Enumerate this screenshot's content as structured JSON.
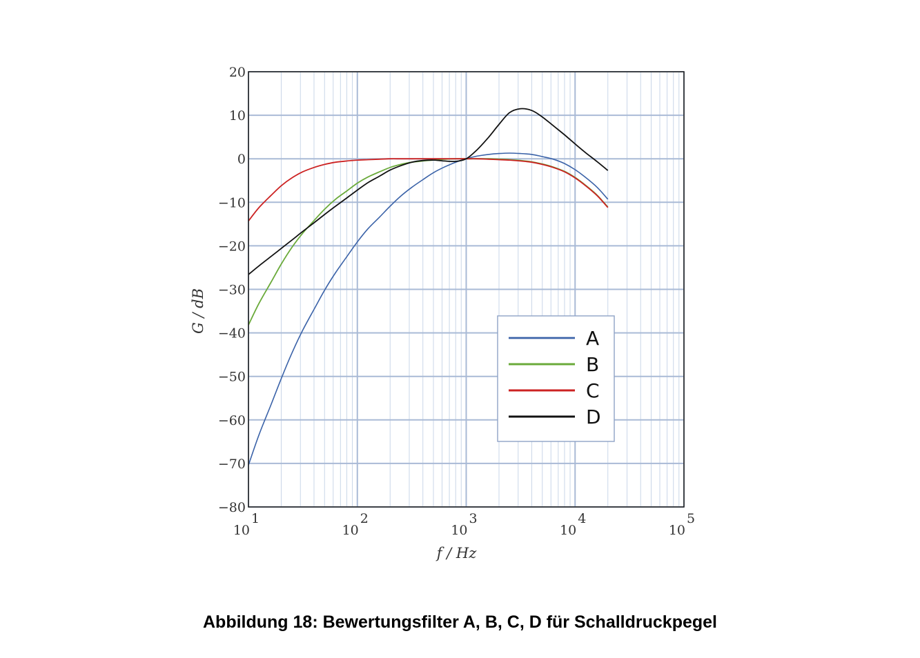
{
  "caption": "Abbildung 18: Bewertungsfilter A, B, C, D für Schalldruckpegel",
  "chart_data": {
    "type": "line",
    "x_scale": "log",
    "xlim": [
      10,
      100000
    ],
    "ylim": [
      -80,
      20
    ],
    "xlabel": "f / Hz",
    "ylabel": "G / dB",
    "x_ticks": [
      {
        "value": 10,
        "base": "10",
        "exp": "1"
      },
      {
        "value": 100,
        "base": "10",
        "exp": "2"
      },
      {
        "value": 1000,
        "base": "10",
        "exp": "3"
      },
      {
        "value": 10000,
        "base": "10",
        "exp": "4"
      },
      {
        "value": 100000,
        "base": "10",
        "exp": "5"
      }
    ],
    "y_ticks": [
      {
        "value": 20,
        "label": "20"
      },
      {
        "value": 10,
        "label": "10"
      },
      {
        "value": 0,
        "label": "0"
      },
      {
        "value": -10,
        "label": "−10"
      },
      {
        "value": -20,
        "label": "−20"
      },
      {
        "value": -30,
        "label": "−30"
      },
      {
        "value": -40,
        "label": "−40"
      },
      {
        "value": -50,
        "label": "−50"
      },
      {
        "value": -60,
        "label": "−60"
      },
      {
        "value": -70,
        "label": "−70"
      },
      {
        "value": -80,
        "label": "−80"
      }
    ],
    "grid": true,
    "legend_position": "bottom-right",
    "x": [
      10,
      12.5,
      16,
      20,
      25,
      31.5,
      40,
      50,
      63,
      80,
      100,
      125,
      160,
      200,
      250,
      315,
      400,
      500,
      630,
      800,
      1000,
      1250,
      1600,
      2000,
      2500,
      3150,
      4000,
      5000,
      6300,
      8000,
      10000,
      12500,
      16000,
      20000
    ],
    "series": [
      {
        "name": "A",
        "color": "#3a62a8",
        "width": 1.6,
        "values": [
          -70.4,
          -63.4,
          -56.7,
          -50.5,
          -44.7,
          -39.4,
          -34.6,
          -30.2,
          -26.2,
          -22.5,
          -19.1,
          -16.1,
          -13.4,
          -10.9,
          -8.6,
          -6.6,
          -4.8,
          -3.2,
          -1.9,
          -0.8,
          0.0,
          0.6,
          1.0,
          1.2,
          1.3,
          1.2,
          1.0,
          0.5,
          -0.1,
          -1.1,
          -2.5,
          -4.3,
          -6.6,
          -9.3
        ]
      },
      {
        "name": "B",
        "color": "#6aaa3a",
        "width": 1.8,
        "values": [
          -38.2,
          -33.2,
          -28.5,
          -24.2,
          -20.4,
          -17.1,
          -14.2,
          -11.6,
          -9.3,
          -7.4,
          -5.6,
          -4.2,
          -3.0,
          -2.0,
          -1.3,
          -0.8,
          -0.5,
          -0.3,
          -0.1,
          0.0,
          0.0,
          0.0,
          0.0,
          -0.1,
          -0.2,
          -0.4,
          -0.7,
          -1.2,
          -1.9,
          -2.9,
          -4.3,
          -6.1,
          -8.4,
          -11.1
        ]
      },
      {
        "name": "C",
        "color": "#cc2222",
        "width": 1.8,
        "values": [
          -14.3,
          -11.2,
          -8.5,
          -6.2,
          -4.4,
          -3.0,
          -2.0,
          -1.3,
          -0.8,
          -0.5,
          -0.3,
          -0.2,
          -0.1,
          0.0,
          0.0,
          0.0,
          0.0,
          0.0,
          0.0,
          0.0,
          0.0,
          0.0,
          -0.1,
          -0.2,
          -0.3,
          -0.5,
          -0.8,
          -1.3,
          -2.0,
          -3.0,
          -4.4,
          -6.2,
          -8.5,
          -11.2
        ]
      },
      {
        "name": "D",
        "color": "#111111",
        "width": 1.8,
        "values": [
          -26.6,
          -24.6,
          -22.5,
          -20.6,
          -18.7,
          -16.7,
          -14.7,
          -12.8,
          -10.9,
          -9.0,
          -7.2,
          -5.5,
          -4.0,
          -2.6,
          -1.6,
          -0.8,
          -0.4,
          -0.3,
          -0.5,
          -0.6,
          0.0,
          2.0,
          4.9,
          7.9,
          10.6,
          11.5,
          11.1,
          9.6,
          7.6,
          5.5,
          3.4,
          1.4,
          -0.7,
          -2.7
        ]
      }
    ]
  }
}
